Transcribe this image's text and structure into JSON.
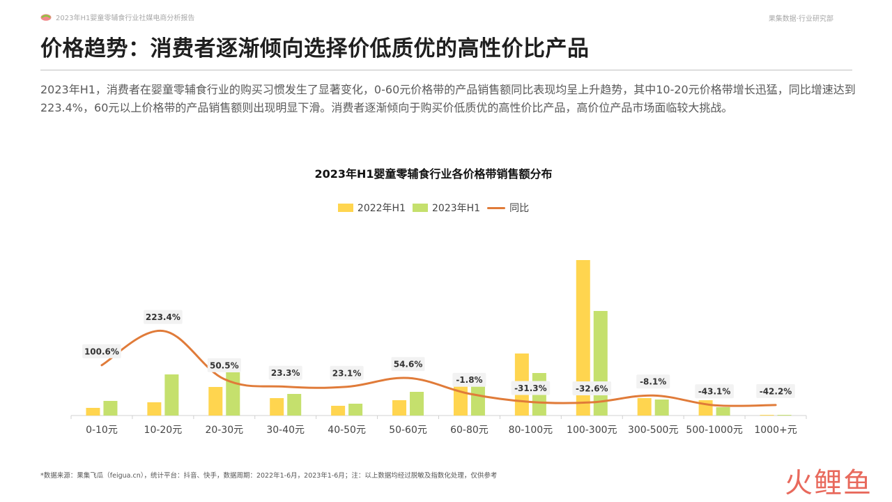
{
  "header": {
    "report_title": "2023年H1婴童零辅食行业社媒电商分析报告",
    "company": "果集数据·行业研究部"
  },
  "page_title": "价格趋势：消费者逐渐倾向选择价低质优的高性价比产品",
  "summary": "2023年H1，消费者在婴童零辅食行业的购买习惯发生了显著变化，0-60元价格带的产品销售额同比表现均呈上升趋势，其中10-20元价格带增长迅猛，同比增速达到223.4%，60元以上价格带的产品销售额则出现明显下滑。消费者逐渐倾向于购买价低质优的高性价比产品，高价位产品市场面临较大挑战。",
  "footnote": "*数据来源：果集飞瓜（feigua.cn），统计平台：抖音、快手，数据周期：2022年1-6月，2023年1-6月；注：以上数据均经过脱敏及指数化处理，仅供参考",
  "watermark": {
    "char1": "火",
    "char2": "鲤",
    "char3": "鱼"
  },
  "colors": {
    "bar_2022": "#FFD54F",
    "bar_2023": "#C5E06D",
    "line": "#E07B39"
  },
  "chart_data": {
    "type": "bar",
    "title": "2023年H1婴童零辅食行业各价格带销售额分布",
    "categories": [
      "0-10元",
      "10-20元",
      "20-30元",
      "30-40元",
      "40-50元",
      "50-60元",
      "60-80元",
      "80-100元",
      "100-300元",
      "300-500元",
      "500-1000元",
      "1000+元"
    ],
    "series": [
      {
        "name": "2022年H1",
        "type": "bar",
        "values": [
          11,
          19,
          41,
          25,
          14,
          22,
          44,
          89,
          223,
          25,
          22,
          1
        ]
      },
      {
        "name": "2023年H1",
        "type": "bar",
        "values": [
          21,
          59,
          62,
          31,
          17,
          34,
          44,
          61,
          150,
          23,
          12,
          1
        ]
      },
      {
        "name": "同比",
        "type": "line",
        "values": [
          100.6,
          223.4,
          50.5,
          23.3,
          23.1,
          54.6,
          -1.8,
          -31.3,
          -32.6,
          -8.1,
          -43.1,
          -42.2
        ]
      }
    ],
    "data_labels": [
      "100.6%",
      "223.4%",
      "50.5%",
      "23.3%",
      "23.1%",
      "54.6%",
      "-1.8%",
      "-31.3%",
      "-32.6%",
      "-8.1%",
      "-43.1%",
      "-42.2%"
    ],
    "legend": [
      "2022年H1",
      "2023年H1",
      "同比"
    ],
    "legend_position": "top-center",
    "grid": false
  }
}
